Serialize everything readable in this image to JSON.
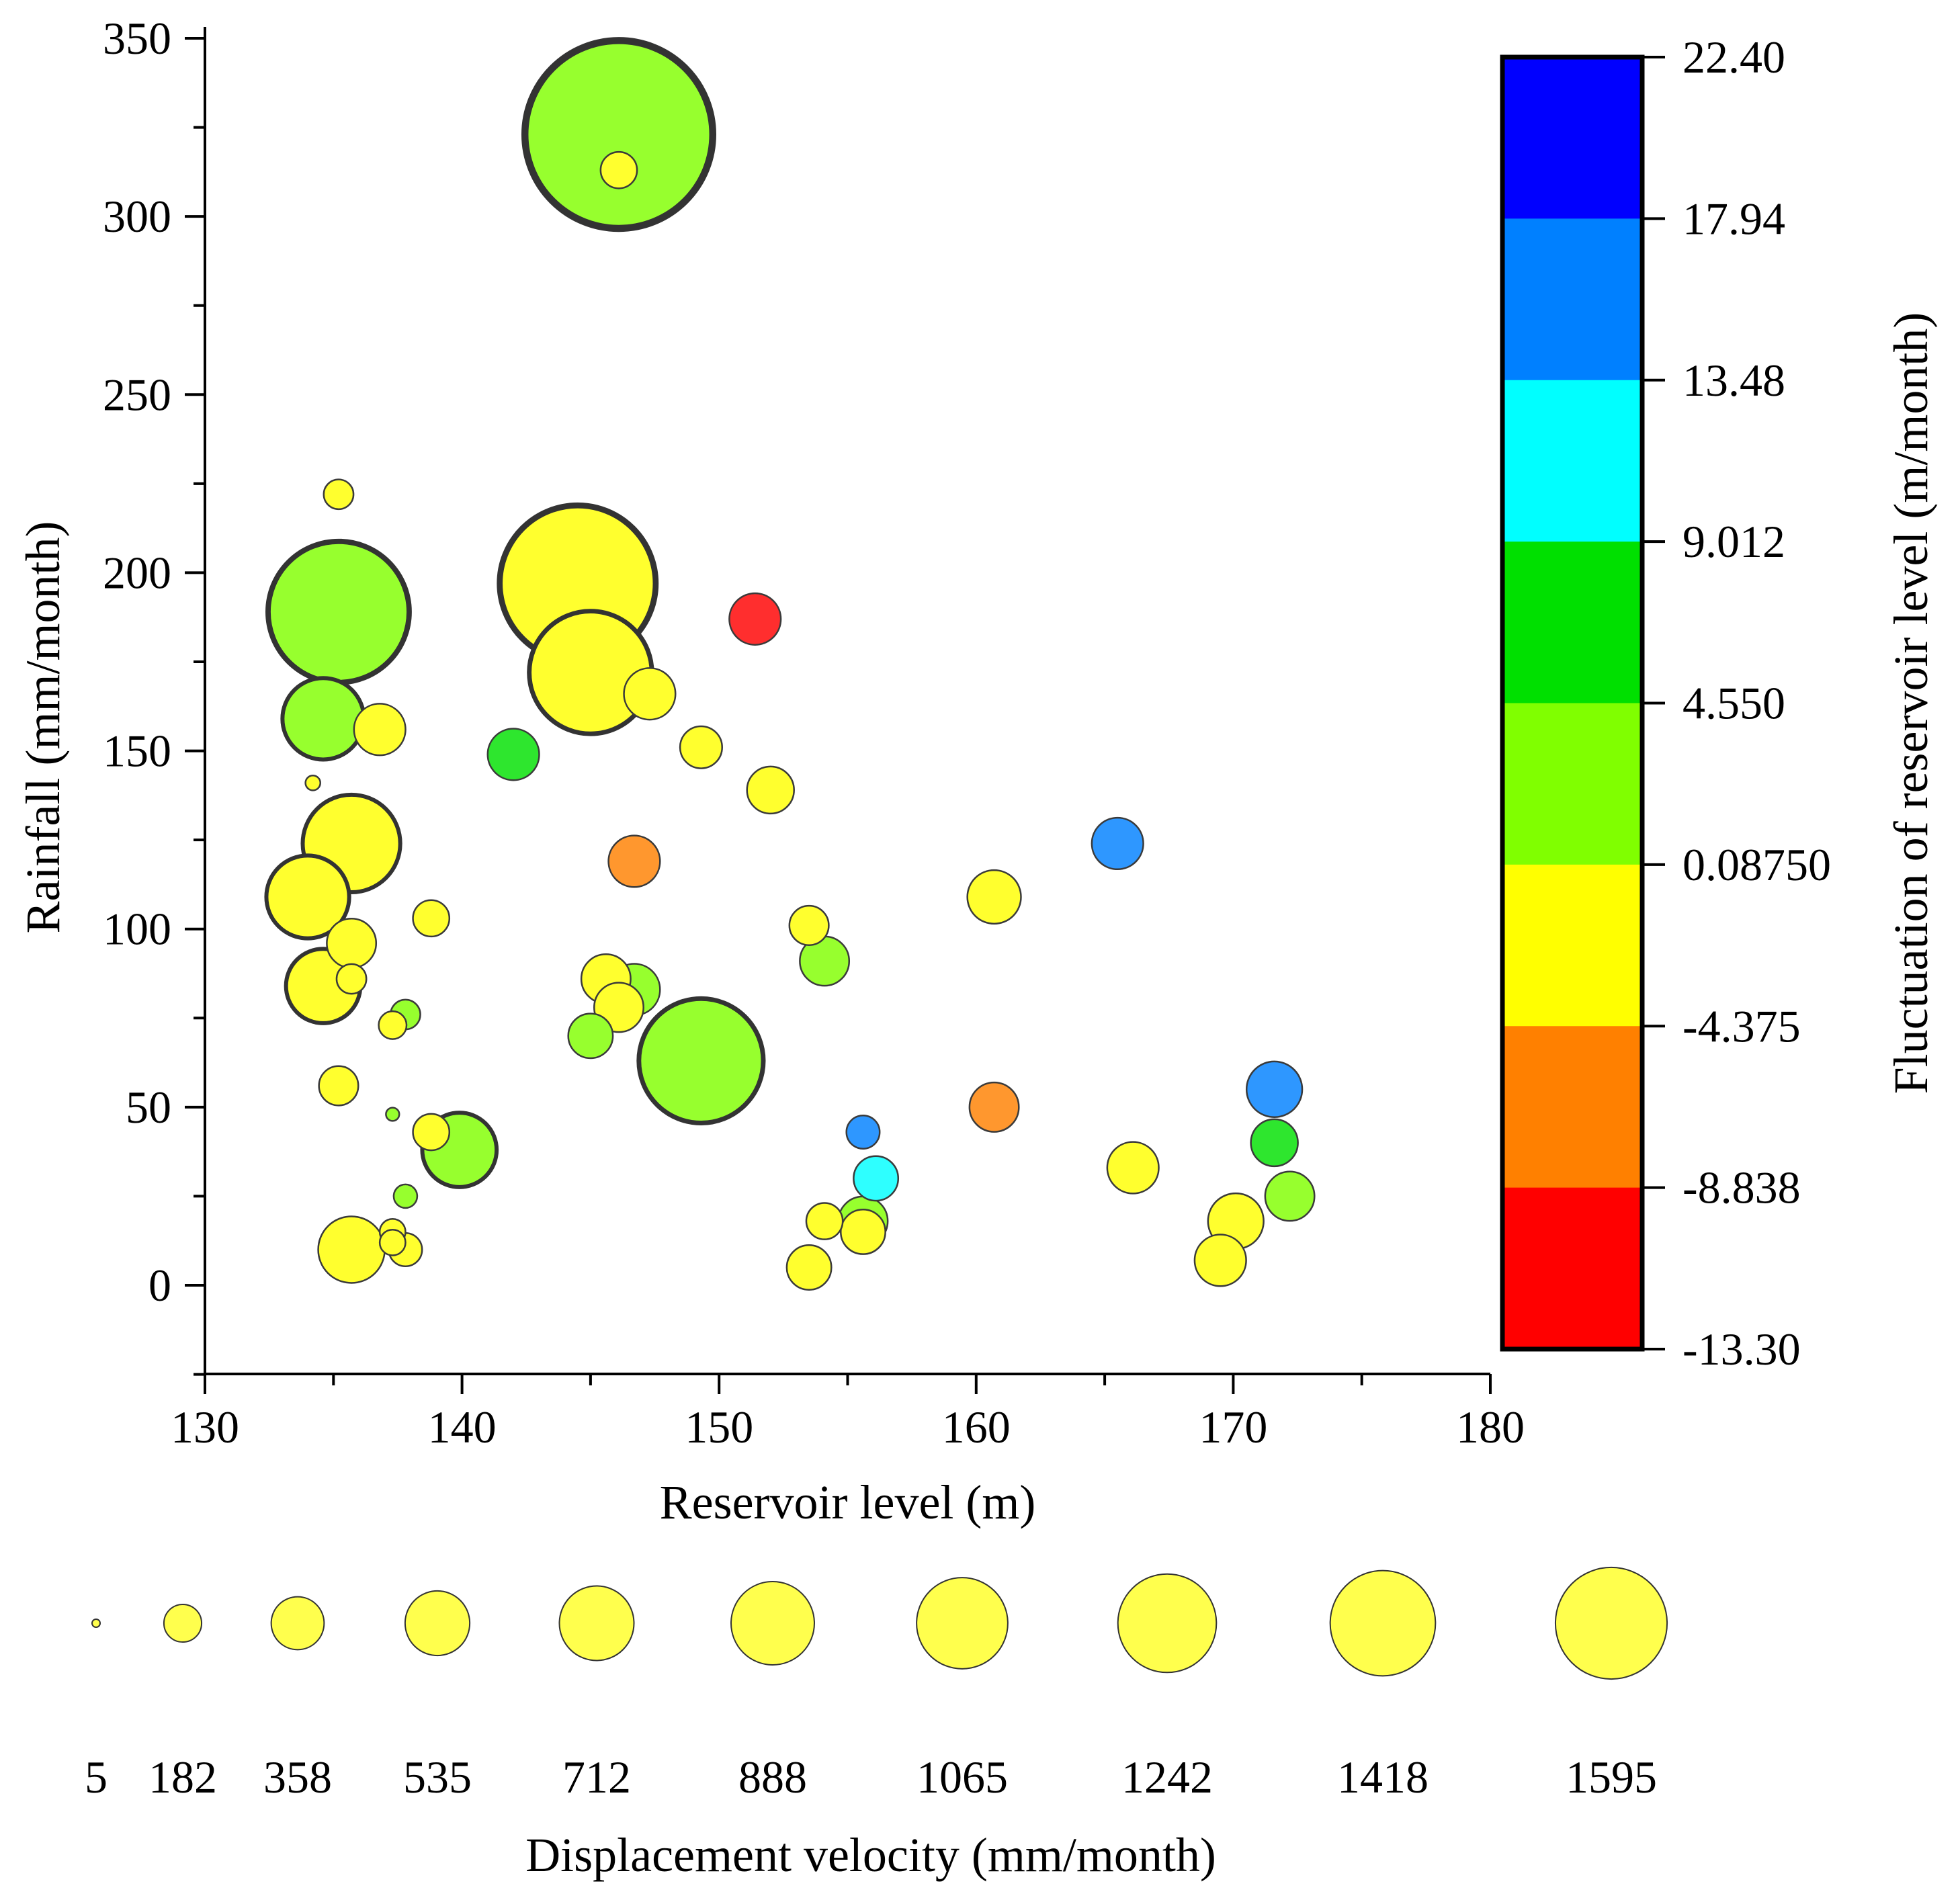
{
  "chart_data": {
    "type": "bubble",
    "xlabel": "Reservoir level (m)",
    "ylabel": "Rainfall (mm/month)",
    "xlim": [
      130,
      180
    ],
    "ylim": [
      -25,
      350
    ],
    "x_ticks": [
      130,
      140,
      150,
      160,
      170,
      180
    ],
    "y_ticks": [
      0,
      50,
      100,
      150,
      200,
      250,
      300,
      350
    ],
    "colorbar": {
      "label": "Fluctuation of reservoir level (m/month)",
      "ticks": [
        "22.40",
        "17.94",
        "13.48",
        "9.012",
        "4.550",
        "0.08750",
        "-4.375",
        "-8.838",
        "-13.30"
      ],
      "bands": [
        "#0000ff",
        "#0080ff",
        "#00ffff",
        "#00e000",
        "#80ff00",
        "#ffff00",
        "#ff8000",
        "#ff0000"
      ]
    },
    "size_legend": {
      "label": "Displacement velocity (mm/month)",
      "values": [
        5,
        182,
        358,
        535,
        712,
        888,
        1065,
        1242,
        1418,
        1595
      ]
    },
    "points": [
      {
        "x": 146.1,
        "y": 323,
        "v": 1595,
        "f": 2.0
      },
      {
        "x": 146.1,
        "y": 313,
        "v": 60,
        "f": -1.0
      },
      {
        "x": 135.2,
        "y": 222,
        "v": 40,
        "f": -1.0
      },
      {
        "x": 144.5,
        "y": 197,
        "v": 1100,
        "f": -1.0
      },
      {
        "x": 135.2,
        "y": 189,
        "v": 900,
        "f": 2.0
      },
      {
        "x": 145.0,
        "y": 172,
        "v": 680,
        "f": -1.0
      },
      {
        "x": 151.4,
        "y": 187,
        "v": 120,
        "f": -11.0
      },
      {
        "x": 147.3,
        "y": 166,
        "v": 120,
        "f": -1.0
      },
      {
        "x": 134.6,
        "y": 159,
        "v": 300,
        "f": 2.0
      },
      {
        "x": 136.8,
        "y": 156,
        "v": 120,
        "f": -1.0
      },
      {
        "x": 142.0,
        "y": 149,
        "v": 120,
        "f": 6.0
      },
      {
        "x": 149.3,
        "y": 151,
        "v": 80,
        "f": -1.0
      },
      {
        "x": 134.2,
        "y": 141,
        "v": 10,
        "f": -1.0
      },
      {
        "x": 152.0,
        "y": 139,
        "v": 100,
        "f": -1.0
      },
      {
        "x": 135.7,
        "y": 124,
        "v": 430,
        "f": -1.0
      },
      {
        "x": 165.5,
        "y": 124,
        "v": 120,
        "f": 16.0
      },
      {
        "x": 146.7,
        "y": 119,
        "v": 120,
        "f": -6.0
      },
      {
        "x": 134.0,
        "y": 109,
        "v": 310,
        "f": -1.0
      },
      {
        "x": 160.7,
        "y": 109,
        "v": 130,
        "f": -1.0
      },
      {
        "x": 138.8,
        "y": 103,
        "v": 60,
        "f": -1.0
      },
      {
        "x": 153.5,
        "y": 101,
        "v": 70,
        "f": -1.0
      },
      {
        "x": 135.7,
        "y": 96,
        "v": 110,
        "f": -1.0
      },
      {
        "x": 154.1,
        "y": 91,
        "v": 110,
        "f": 2.0
      },
      {
        "x": 145.6,
        "y": 86,
        "v": 110,
        "f": -1.0
      },
      {
        "x": 135.7,
        "y": 86,
        "v": 40,
        "f": -1.0
      },
      {
        "x": 134.6,
        "y": 84,
        "v": 250,
        "f": -1.0
      },
      {
        "x": 146.7,
        "y": 83,
        "v": 120,
        "f": 2.0
      },
      {
        "x": 146.1,
        "y": 78,
        "v": 110,
        "f": -1.0
      },
      {
        "x": 137.8,
        "y": 76,
        "v": 40,
        "f": 2.0
      },
      {
        "x": 137.3,
        "y": 73,
        "v": 35,
        "f": -1.0
      },
      {
        "x": 145.0,
        "y": 70,
        "v": 90,
        "f": 2.0
      },
      {
        "x": 149.3,
        "y": 63,
        "v": 700,
        "f": 2.0
      },
      {
        "x": 135.2,
        "y": 56,
        "v": 70,
        "f": -1.0
      },
      {
        "x": 171.6,
        "y": 55,
        "v": 140,
        "f": 16.0
      },
      {
        "x": 160.7,
        "y": 50,
        "v": 110,
        "f": -6.0
      },
      {
        "x": 137.3,
        "y": 48,
        "v": 8,
        "f": 2.0
      },
      {
        "x": 155.6,
        "y": 43,
        "v": 50,
        "f": 16.0
      },
      {
        "x": 138.8,
        "y": 43,
        "v": 60,
        "f": -1.0
      },
      {
        "x": 171.6,
        "y": 40,
        "v": 100,
        "f": 6.0
      },
      {
        "x": 139.9,
        "y": 38,
        "v": 250,
        "f": 2.0
      },
      {
        "x": 166.1,
        "y": 33,
        "v": 120,
        "f": -1.0
      },
      {
        "x": 156.1,
        "y": 30,
        "v": 90,
        "f": 11.0
      },
      {
        "x": 137.8,
        "y": 25,
        "v": 25,
        "f": 2.0
      },
      {
        "x": 172.2,
        "y": 25,
        "v": 110,
        "f": 2.0
      },
      {
        "x": 155.6,
        "y": 18,
        "v": 110,
        "f": 2.0
      },
      {
        "x": 154.1,
        "y": 18,
        "v": 60,
        "f": -1.0
      },
      {
        "x": 170.1,
        "y": 18,
        "v": 140,
        "f": -1.0
      },
      {
        "x": 155.6,
        "y": 15,
        "v": 90,
        "f": -1.0
      },
      {
        "x": 137.3,
        "y": 15,
        "v": 30,
        "f": -1.0
      },
      {
        "x": 137.3,
        "y": 12,
        "v": 30,
        "f": -1.0
      },
      {
        "x": 137.8,
        "y": 10,
        "v": 50,
        "f": -1.0
      },
      {
        "x": 135.7,
        "y": 10,
        "v": 200,
        "f": -1.0
      },
      {
        "x": 169.5,
        "y": 7,
        "v": 120,
        "f": -1.0
      },
      {
        "x": 153.5,
        "y": 5,
        "v": 90,
        "f": -1.0
      }
    ]
  }
}
